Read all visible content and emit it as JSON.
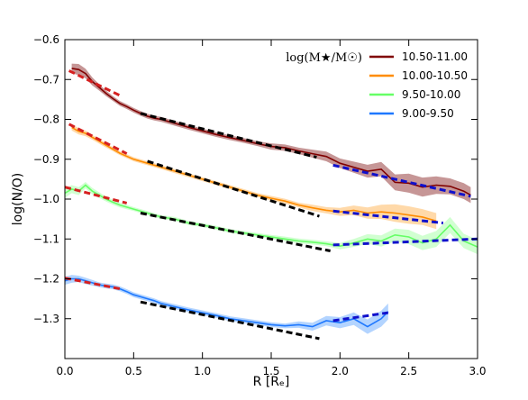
{
  "chart_data": {
    "type": "line",
    "xlabel": "R [Rₑ]",
    "ylabel": "log(N/O)",
    "xlim": [
      0.0,
      3.0
    ],
    "ylim": [
      -1.4,
      -0.6
    ],
    "xticks": [
      0.0,
      0.5,
      1.0,
      1.5,
      2.0,
      2.5,
      3.0
    ],
    "xtick_labels": [
      "0.0",
      "0.5",
      "1.0",
      "1.5",
      "2.0",
      "2.5",
      "3.0"
    ],
    "yticks": [
      -1.3,
      -1.2,
      -1.1,
      -1.0,
      -0.9,
      -0.8,
      -0.7,
      -0.6
    ],
    "ytick_labels": [
      "−1.3",
      "−1.2",
      "−1.1",
      "−1.0",
      "−0.9",
      "−0.8",
      "−0.7",
      "−0.6"
    ],
    "grid": false,
    "legend": {
      "title": "log(M★/M☉)",
      "placement": "top-right"
    },
    "series": [
      {
        "name": "10.50-11.00",
        "color": "#800000",
        "band_color": "#a05050",
        "x": [
          0.05,
          0.1,
          0.15,
          0.2,
          0.25,
          0.3,
          0.35,
          0.4,
          0.45,
          0.5,
          0.55,
          0.6,
          0.65,
          0.7,
          0.8,
          0.9,
          1.0,
          1.1,
          1.2,
          1.3,
          1.4,
          1.5,
          1.6,
          1.7,
          1.8,
          1.9,
          2.0,
          2.1,
          2.2,
          2.3,
          2.4,
          2.5,
          2.6,
          2.7,
          2.8,
          2.9,
          2.95
        ],
        "y": [
          -0.672,
          -0.675,
          -0.685,
          -0.705,
          -0.72,
          -0.735,
          -0.748,
          -0.76,
          -0.768,
          -0.777,
          -0.785,
          -0.792,
          -0.797,
          -0.8,
          -0.81,
          -0.82,
          -0.829,
          -0.838,
          -0.846,
          -0.853,
          -0.861,
          -0.868,
          -0.871,
          -0.879,
          -0.886,
          -0.893,
          -0.91,
          -0.92,
          -0.93,
          -0.925,
          -0.958,
          -0.96,
          -0.97,
          -0.965,
          -0.968,
          -0.98,
          -0.99
        ],
        "err": [
          0.012,
          0.014,
          0.012,
          0.01,
          0.008,
          0.007,
          0.006,
          0.006,
          0.006,
          0.006,
          0.006,
          0.006,
          0.006,
          0.006,
          0.006,
          0.006,
          0.006,
          0.006,
          0.006,
          0.006,
          0.006,
          0.008,
          0.008,
          0.008,
          0.01,
          0.012,
          0.012,
          0.014,
          0.016,
          0.018,
          0.02,
          0.024,
          0.024,
          0.022,
          0.02,
          0.02,
          0.02
        ],
        "fits": [
          {
            "style": "red-dashed",
            "x": [
              0.03,
              0.4
            ],
            "y": [
              -0.678,
              -0.74
            ]
          },
          {
            "style": "black-dashed",
            "x": [
              0.55,
              1.83
            ],
            "y": [
              -0.785,
              -0.895
            ]
          },
          {
            "style": "blue-dashed",
            "x": [
              1.95,
              2.95
            ],
            "y": [
              -0.915,
              -0.993
            ]
          }
        ]
      },
      {
        "name": "10.00-10.50",
        "color": "#ff8c00",
        "band_color": "#ffc070",
        "x": [
          0.05,
          0.1,
          0.15,
          0.2,
          0.25,
          0.3,
          0.35,
          0.4,
          0.5,
          0.6,
          0.7,
          0.8,
          0.9,
          1.0,
          1.1,
          1.2,
          1.3,
          1.4,
          1.5,
          1.6,
          1.7,
          1.8,
          1.9,
          2.0,
          2.1,
          2.2,
          2.3,
          2.4,
          2.5,
          2.6,
          2.7
        ],
        "y": [
          -0.82,
          -0.83,
          -0.835,
          -0.845,
          -0.855,
          -0.865,
          -0.875,
          -0.885,
          -0.9,
          -0.91,
          -0.92,
          -0.93,
          -0.94,
          -0.95,
          -0.96,
          -0.97,
          -0.98,
          -0.99,
          -0.998,
          -1.005,
          -1.015,
          -1.022,
          -1.028,
          -1.032,
          -1.028,
          -1.035,
          -1.032,
          -1.035,
          -1.04,
          -1.045,
          -1.055
        ],
        "err": [
          0.008,
          0.008,
          0.007,
          0.006,
          0.006,
          0.006,
          0.005,
          0.005,
          0.005,
          0.005,
          0.005,
          0.005,
          0.005,
          0.005,
          0.005,
          0.005,
          0.005,
          0.005,
          0.006,
          0.006,
          0.006,
          0.008,
          0.008,
          0.01,
          0.012,
          0.014,
          0.018,
          0.022,
          0.022,
          0.02,
          0.02
        ],
        "fits": [
          {
            "style": "red-dashed",
            "x": [
              0.03,
              0.45
            ],
            "y": [
              -0.812,
              -0.886
            ]
          },
          {
            "style": "black-dashed",
            "x": [
              0.6,
              1.85
            ],
            "y": [
              -0.905,
              -1.043
            ]
          },
          {
            "style": "blue-dashed",
            "x": [
              1.95,
              2.75
            ],
            "y": [
              -1.03,
              -1.06
            ]
          }
        ]
      },
      {
        "name": "9.50-10.00",
        "color": "#66ff66",
        "band_color": "#b3ffb3",
        "x": [
          0.0,
          0.05,
          0.1,
          0.15,
          0.2,
          0.25,
          0.3,
          0.35,
          0.4,
          0.5,
          0.6,
          0.7,
          0.8,
          0.9,
          1.0,
          1.1,
          1.2,
          1.3,
          1.4,
          1.5,
          1.6,
          1.7,
          1.8,
          1.9,
          2.0,
          2.1,
          2.2,
          2.3,
          2.4,
          2.5,
          2.6,
          2.7,
          2.8,
          2.9,
          3.0
        ],
        "y": [
          -0.985,
          -0.975,
          -0.98,
          -0.965,
          -0.98,
          -0.99,
          -1.0,
          -1.008,
          -1.015,
          -1.025,
          -1.035,
          -1.045,
          -1.05,
          -1.06,
          -1.065,
          -1.072,
          -1.08,
          -1.085,
          -1.09,
          -1.095,
          -1.1,
          -1.105,
          -1.108,
          -1.112,
          -1.118,
          -1.11,
          -1.1,
          -1.105,
          -1.09,
          -1.095,
          -1.11,
          -1.1,
          -1.065,
          -1.105,
          -1.12
        ],
        "err": [
          0.012,
          0.01,
          0.01,
          0.008,
          0.008,
          0.007,
          0.006,
          0.006,
          0.006,
          0.005,
          0.005,
          0.005,
          0.005,
          0.005,
          0.005,
          0.005,
          0.005,
          0.005,
          0.005,
          0.005,
          0.006,
          0.006,
          0.006,
          0.006,
          0.008,
          0.01,
          0.012,
          0.014,
          0.016,
          0.018,
          0.018,
          0.02,
          0.02,
          0.018,
          0.018
        ],
        "fits": [
          {
            "style": "red-dashed",
            "x": [
              0.0,
              0.45
            ],
            "y": [
              -0.97,
              -1.01
            ]
          },
          {
            "style": "black-dashed",
            "x": [
              0.55,
              1.93
            ],
            "y": [
              -1.035,
              -1.13
            ]
          },
          {
            "style": "blue-dashed",
            "x": [
              1.95,
              3.0
            ],
            "y": [
              -1.115,
              -1.1
            ]
          }
        ]
      },
      {
        "name": "9.00-9.50",
        "color": "#1e78ff",
        "band_color": "#80b8ff",
        "x": [
          0.0,
          0.05,
          0.1,
          0.15,
          0.2,
          0.25,
          0.3,
          0.35,
          0.4,
          0.45,
          0.5,
          0.55,
          0.6,
          0.65,
          0.7,
          0.8,
          0.9,
          1.0,
          1.1,
          1.2,
          1.3,
          1.4,
          1.5,
          1.6,
          1.7,
          1.8,
          1.9,
          2.0,
          2.1,
          2.2,
          2.3,
          2.35
        ],
        "y": [
          -1.205,
          -1.2,
          -1.2,
          -1.205,
          -1.21,
          -1.215,
          -1.218,
          -1.22,
          -1.225,
          -1.232,
          -1.24,
          -1.245,
          -1.25,
          -1.255,
          -1.262,
          -1.27,
          -1.278,
          -1.285,
          -1.292,
          -1.3,
          -1.305,
          -1.31,
          -1.315,
          -1.318,
          -1.315,
          -1.32,
          -1.305,
          -1.31,
          -1.3,
          -1.32,
          -1.3,
          -1.282
        ],
        "err": [
          0.01,
          0.01,
          0.008,
          0.008,
          0.007,
          0.006,
          0.006,
          0.006,
          0.006,
          0.006,
          0.006,
          0.006,
          0.006,
          0.006,
          0.006,
          0.006,
          0.006,
          0.006,
          0.006,
          0.006,
          0.006,
          0.006,
          0.006,
          0.006,
          0.008,
          0.01,
          0.012,
          0.014,
          0.016,
          0.018,
          0.02,
          0.02
        ],
        "fits": [
          {
            "style": "red-dashed",
            "x": [
              0.0,
              0.4
            ],
            "y": [
              -1.198,
              -1.225
            ]
          },
          {
            "style": "black-dashed",
            "x": [
              0.55,
              1.85
            ],
            "y": [
              -1.258,
              -1.35
            ]
          },
          {
            "style": "blue-dashed",
            "x": [
              1.95,
              2.35
            ],
            "y": [
              -1.305,
              -1.285
            ]
          }
        ]
      }
    ]
  }
}
